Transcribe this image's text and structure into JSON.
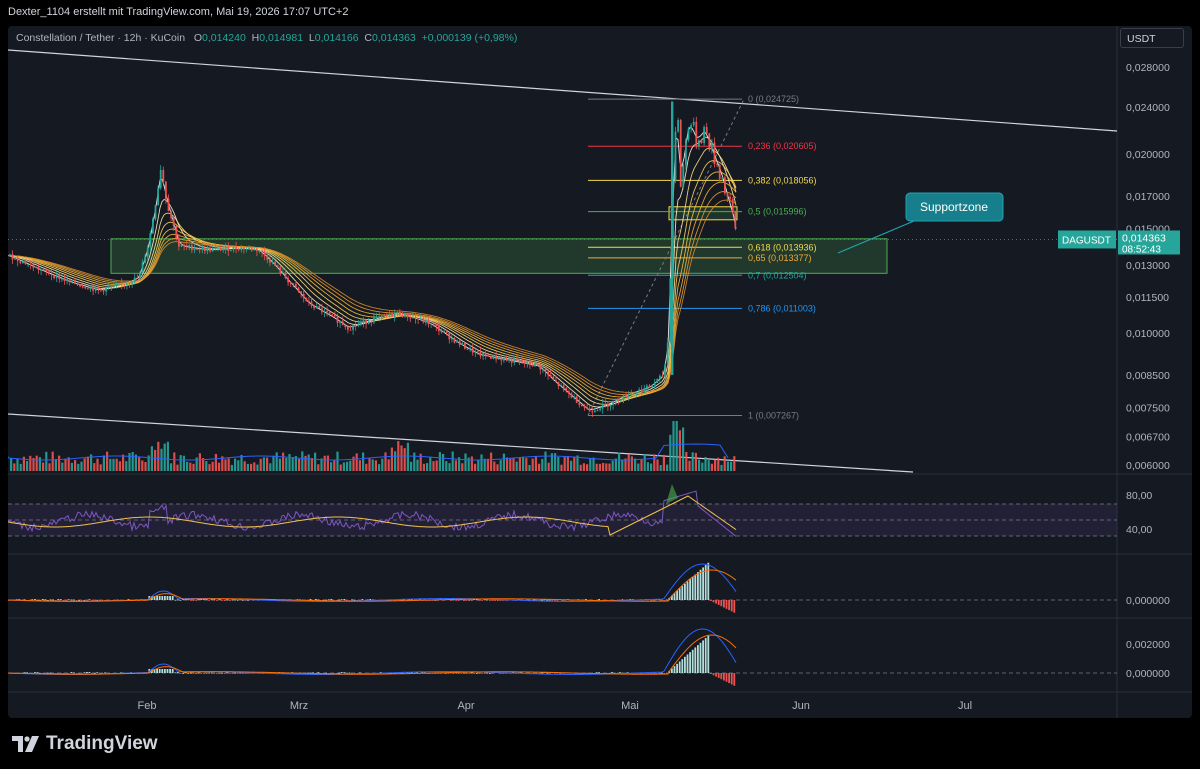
{
  "header": {
    "author_line": "Dexter_1104 erstellt mit TradingView.com, Mai 19, 2026 17:07 UTC+2"
  },
  "legend": {
    "symbol": "Constellation / Tether · 12h · KuCoin",
    "o_label": "O",
    "o": "0,014240",
    "h_label": "H",
    "h": "0,014981",
    "l_label": "L",
    "l": "0,014166",
    "c_label": "C",
    "c": "0,014363",
    "change": "+0,000139 (+0,98%)"
  },
  "currency_button": "USDT",
  "price_axis": {
    "ticks": [
      "0,028000",
      "0,024000",
      "0,020000",
      "0,017000",
      "0,015000",
      "0,013000",
      "0,011500",
      "0,010000",
      "0,008500",
      "0,007500",
      "0,006700",
      "0,006000"
    ],
    "current_symbol": "DAGUSDT",
    "current_price": "0,014363",
    "countdown": "08:52:43"
  },
  "rsi_axis": {
    "ticks": [
      "80,00",
      "40,00"
    ]
  },
  "macd1_axis": {
    "ticks": [
      "0,000000"
    ]
  },
  "macd2_axis": {
    "ticks": [
      "0,002000",
      "0,000000"
    ]
  },
  "time_axis": {
    "labels": [
      "Feb",
      "Mrz",
      "Apr",
      "Mai",
      "Jun",
      "Jul"
    ]
  },
  "fib": {
    "levels": [
      {
        "label": "0 (0,024725)",
        "value": 0.024725,
        "color": "#787b86"
      },
      {
        "label": "0,236 (0,020605)",
        "value": 0.020605,
        "color": "#f23645"
      },
      {
        "label": "0,382 (0,018056)",
        "value": 0.018056,
        "color": "#f2d94f"
      },
      {
        "label": "0,5 (0,015996)",
        "value": 0.015996,
        "color": "#4caf50"
      },
      {
        "label": "0,618 (0,013936)",
        "value": 0.013936,
        "color": "#f2d94f"
      },
      {
        "label": "0,65 (0,013377)",
        "value": 0.013377,
        "color": "#f2a93b"
      },
      {
        "label": "0,7 (0,012504)",
        "value": 0.012504,
        "color": "#26a69a"
      },
      {
        "label": "0,786 (0,011003)",
        "value": 0.011003,
        "color": "#2196f3"
      },
      {
        "label": "1 (0,007267)",
        "value": 0.007267,
        "color": "#787b86"
      }
    ]
  },
  "annotation": {
    "label": "Supportzone"
  },
  "footer": {
    "brand": "TradingView"
  },
  "colors": {
    "up": "#26a69a",
    "down": "#ef5350",
    "background": "#151922",
    "accent": "#2962ff"
  }
}
